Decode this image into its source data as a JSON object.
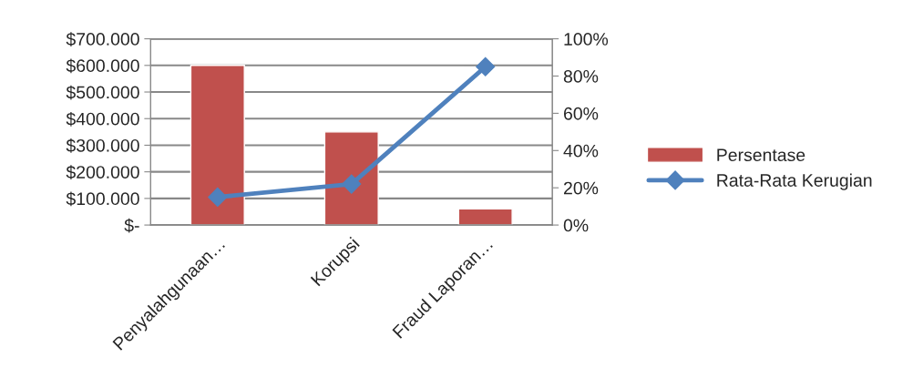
{
  "chart_data": {
    "type": "bar",
    "categories": [
      "Penyalahgunaan…",
      "Korupsi",
      "Fraud Laporan…"
    ],
    "series": [
      {
        "name": "Persentase",
        "color": "#c0504d",
        "values": [
          600000,
          350000,
          61000
        ]
      },
      {
        "name": "Rata-Rata Kerugian",
        "type": "line",
        "axis": "y2",
        "color": "#4f81bd",
        "marker": "diamond",
        "values": [
          15,
          22,
          85
        ]
      }
    ],
    "ylim": [
      0,
      700000
    ],
    "yticks": [
      {
        "value": 0,
        "label": "$-"
      },
      {
        "value": 100000,
        "label": "$100.000"
      },
      {
        "value": 200000,
        "label": "$200.000"
      },
      {
        "value": 300000,
        "label": "$300.000"
      },
      {
        "value": 400000,
        "label": "$400.000"
      },
      {
        "value": 500000,
        "label": "$500.000"
      },
      {
        "value": 600000,
        "label": "$600.000"
      },
      {
        "value": 700000,
        "label": "$700.000"
      }
    ],
    "y2lim": [
      0,
      100
    ],
    "y2ticks": [
      {
        "value": 0,
        "label": "0%"
      },
      {
        "value": 20,
        "label": "20%"
      },
      {
        "value": 40,
        "label": "40%"
      },
      {
        "value": 60,
        "label": "60%"
      },
      {
        "value": 80,
        "label": "80%"
      },
      {
        "value": 100,
        "label": "100%"
      }
    ],
    "grid": "y",
    "legend": "right"
  }
}
